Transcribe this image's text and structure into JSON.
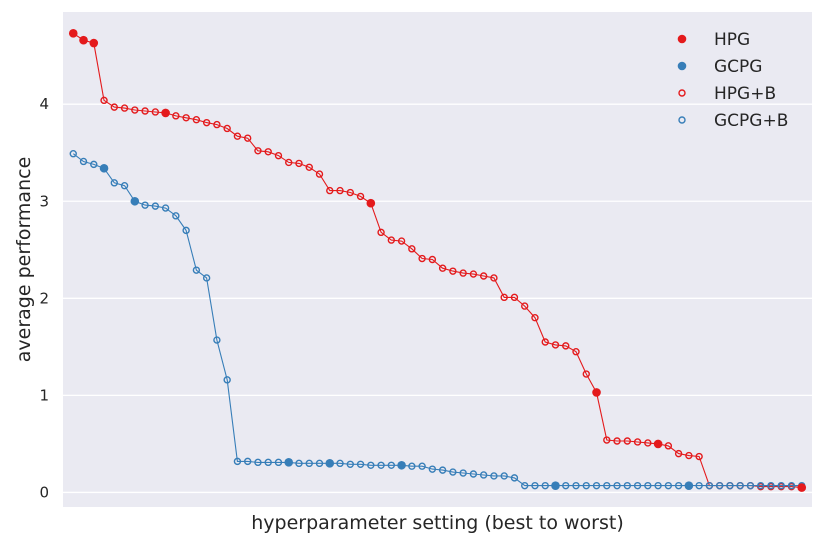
{
  "chart_data": {
    "type": "scatter",
    "xlabel": "hyperparameter setting (best to worst)",
    "ylabel": "average performance",
    "xlim": [
      -1,
      72
    ],
    "ylim": [
      -0.15,
      4.95
    ],
    "yticks": [
      0,
      1,
      2,
      3,
      4
    ],
    "grid": true,
    "legend_position": "top-right",
    "colors": {
      "red": "#e41a1c",
      "blue": "#377eb8",
      "background": "#eaeaf2",
      "grid": "#ffffff"
    },
    "series": [
      {
        "name": "HPG",
        "color": "#e41a1c",
        "marker": "filled",
        "connected": false,
        "x": [
          0,
          1,
          2,
          9,
          29,
          51,
          57,
          71
        ],
        "y": [
          4.73,
          4.66,
          4.63,
          3.91,
          2.98,
          1.03,
          0.5,
          0.05
        ]
      },
      {
        "name": "GCPG",
        "color": "#377eb8",
        "marker": "filled",
        "connected": false,
        "x": [
          3,
          6,
          21,
          25,
          32,
          47,
          60
        ],
        "y": [
          3.34,
          3.0,
          0.31,
          0.3,
          0.28,
          0.07,
          0.07
        ]
      },
      {
        "name": "HPG+B",
        "color": "#e41a1c",
        "marker": "open",
        "connected": true,
        "values": [
          4.73,
          4.66,
          4.63,
          4.04,
          3.97,
          3.96,
          3.94,
          3.93,
          3.92,
          3.91,
          3.88,
          3.86,
          3.84,
          3.81,
          3.79,
          3.75,
          3.67,
          3.65,
          3.52,
          3.51,
          3.47,
          3.4,
          3.39,
          3.35,
          3.28,
          3.11,
          3.11,
          3.09,
          3.05,
          2.98,
          2.68,
          2.6,
          2.59,
          2.51,
          2.41,
          2.4,
          2.31,
          2.28,
          2.26,
          2.25,
          2.23,
          2.21,
          2.01,
          2.01,
          1.92,
          1.8,
          1.55,
          1.52,
          1.51,
          1.45,
          1.22,
          1.03,
          0.54,
          0.53,
          0.53,
          0.52,
          0.51,
          0.5,
          0.48,
          0.4,
          0.38,
          0.37,
          0.07,
          0.07,
          0.07,
          0.07,
          0.07,
          0.06,
          0.06,
          0.06,
          0.06,
          0.05
        ]
      },
      {
        "name": "GCPG+B",
        "color": "#377eb8",
        "marker": "open",
        "connected": true,
        "values": [
          3.49,
          3.41,
          3.38,
          3.34,
          3.19,
          3.16,
          3.0,
          2.96,
          2.95,
          2.93,
          2.85,
          2.7,
          2.29,
          2.21,
          1.57,
          1.16,
          0.32,
          0.32,
          0.31,
          0.31,
          0.31,
          0.31,
          0.3,
          0.3,
          0.3,
          0.3,
          0.3,
          0.29,
          0.29,
          0.28,
          0.28,
          0.28,
          0.28,
          0.27,
          0.27,
          0.24,
          0.23,
          0.21,
          0.2,
          0.19,
          0.18,
          0.17,
          0.17,
          0.15,
          0.07,
          0.07,
          0.07,
          0.07,
          0.07,
          0.07,
          0.07,
          0.07,
          0.07,
          0.07,
          0.07,
          0.07,
          0.07,
          0.07,
          0.07,
          0.07,
          0.07,
          0.07,
          0.07,
          0.07,
          0.07,
          0.07,
          0.07,
          0.07,
          0.07,
          0.07,
          0.07,
          0.07
        ]
      }
    ]
  }
}
